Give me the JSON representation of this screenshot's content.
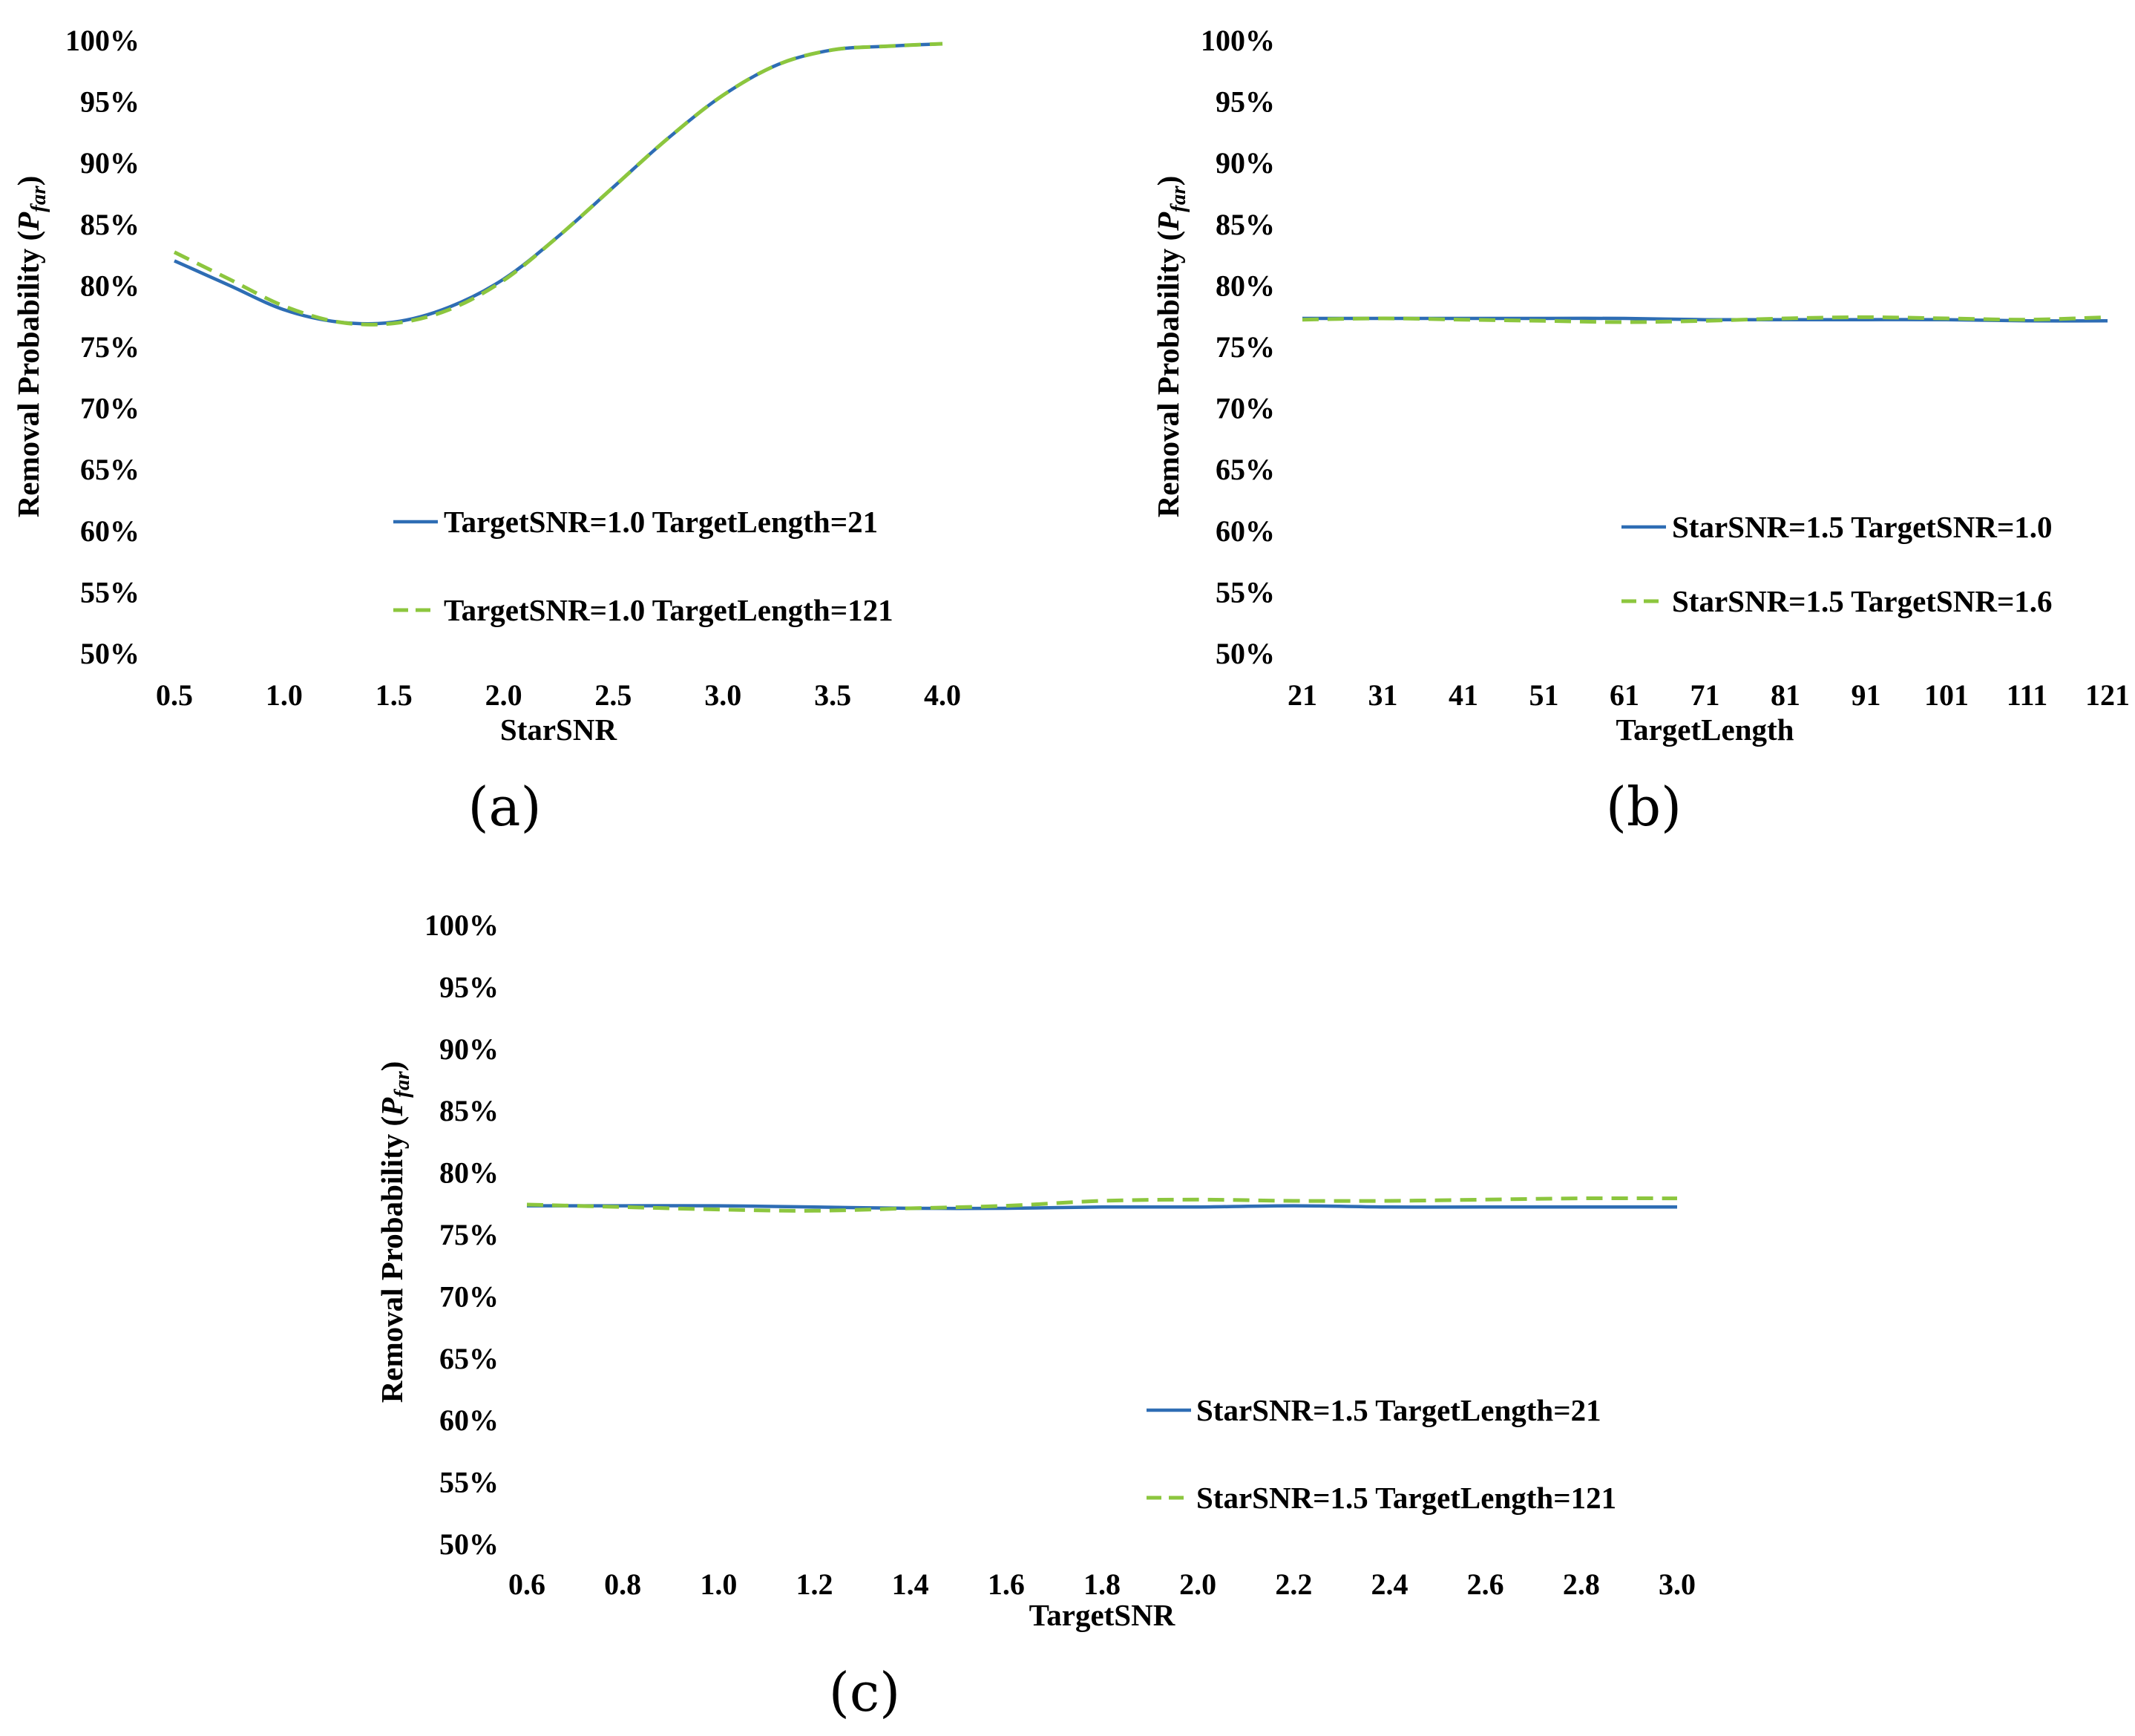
{
  "colors": {
    "series_solid": "#2e6db4",
    "series_dashed": "#8cc63e"
  },
  "chart_data": [
    {
      "id": "a",
      "type": "line",
      "caption": "(a)",
      "xlabel": "StarSNR",
      "ylabel_prefix": "Removal Probability (",
      "ylabel_symbol": "P",
      "ylabel_subscript": "far",
      "ylabel_suffix": ")",
      "xlim": [
        0.5,
        4.0
      ],
      "ylim": [
        50,
        100
      ],
      "x_ticks": [
        "0.5",
        "1.0",
        "1.5",
        "2.0",
        "2.5",
        "3.0",
        "3.5",
        "4.0"
      ],
      "y_ticks": [
        "50%",
        "55%",
        "60%",
        "65%",
        "70%",
        "75%",
        "80%",
        "85%",
        "90%",
        "95%",
        "100%"
      ],
      "legend_position": "lower-right",
      "series": [
        {
          "name": "TargetSNR=1.0 TargetLength=21",
          "style": "solid",
          "x": [
            0.5,
            0.75,
            1.0,
            1.25,
            1.5,
            1.75,
            2.0,
            2.25,
            2.5,
            2.75,
            3.0,
            3.25,
            3.5,
            3.75,
            4.0
          ],
          "y": [
            82.0,
            80.0,
            78.0,
            77.0,
            77.0,
            78.2,
            80.5,
            84.0,
            88.0,
            92.0,
            95.5,
            98.0,
            99.2,
            99.5,
            99.7
          ]
        },
        {
          "name": "TargetSNR=1.0 TargetLength=121",
          "style": "dashed",
          "x": [
            0.5,
            0.75,
            1.0,
            1.25,
            1.5,
            1.75,
            2.0,
            2.25,
            2.5,
            2.75,
            3.0,
            3.25,
            3.5,
            3.75,
            4.0
          ],
          "y": [
            82.7,
            80.5,
            78.3,
            77.0,
            76.9,
            78.0,
            80.4,
            84.0,
            88.0,
            92.0,
            95.5,
            98.0,
            99.2,
            99.5,
            99.7
          ]
        }
      ]
    },
    {
      "id": "b",
      "type": "line",
      "caption": "(b)",
      "xlabel": "TargetLength",
      "ylabel_prefix": "Removal Probability (",
      "ylabel_symbol": "P",
      "ylabel_subscript": "far",
      "ylabel_suffix": ")",
      "xlim": [
        21,
        121
      ],
      "ylim": [
        50,
        100
      ],
      "x_ticks": [
        "21",
        "31",
        "41",
        "51",
        "61",
        "71",
        "81",
        "91",
        "101",
        "111",
        "121"
      ],
      "y_ticks": [
        "50%",
        "55%",
        "60%",
        "65%",
        "70%",
        "75%",
        "80%",
        "85%",
        "90%",
        "95%",
        "100%"
      ],
      "legend_position": "lower-right",
      "series": [
        {
          "name": "StarSNR=1.5 TargetSNR=1.0",
          "style": "solid",
          "x": [
            21,
            31,
            41,
            51,
            61,
            71,
            81,
            91,
            101,
            111,
            121
          ],
          "y": [
            77.3,
            77.3,
            77.3,
            77.3,
            77.3,
            77.2,
            77.2,
            77.2,
            77.2,
            77.1,
            77.1
          ]
        },
        {
          "name": "StarSNR=1.5 TargetSNR=1.6",
          "style": "dashed",
          "x": [
            21,
            31,
            41,
            51,
            61,
            71,
            81,
            91,
            101,
            111,
            121
          ],
          "y": [
            77.2,
            77.3,
            77.2,
            77.1,
            77.0,
            77.1,
            77.3,
            77.4,
            77.3,
            77.2,
            77.4
          ]
        }
      ]
    },
    {
      "id": "c",
      "type": "line",
      "caption": "(c)",
      "xlabel": "TargetSNR",
      "ylabel_prefix": "Removal Probability (",
      "ylabel_symbol": "P",
      "ylabel_subscript": "far",
      "ylabel_suffix": ")",
      "xlim": [
        0.6,
        3.0
      ],
      "ylim": [
        50,
        100
      ],
      "x_ticks": [
        "0.6",
        "0.8",
        "1.0",
        "1.2",
        "1.4",
        "1.6",
        "1.8",
        "2.0",
        "2.2",
        "2.4",
        "2.6",
        "2.8",
        "3.0"
      ],
      "y_ticks": [
        "50%",
        "55%",
        "60%",
        "65%",
        "70%",
        "75%",
        "80%",
        "85%",
        "90%",
        "95%",
        "100%"
      ],
      "legend_position": "lower-right",
      "series": [
        {
          "name": "StarSNR=1.5 TargetLength=21",
          "style": "solid",
          "x": [
            0.6,
            0.8,
            1.0,
            1.2,
            1.4,
            1.6,
            1.8,
            2.0,
            2.2,
            2.4,
            2.6,
            2.8,
            3.0
          ],
          "y": [
            77.3,
            77.3,
            77.3,
            77.2,
            77.1,
            77.1,
            77.2,
            77.2,
            77.3,
            77.2,
            77.2,
            77.2,
            77.2
          ]
        },
        {
          "name": "StarSNR=1.5 TargetLength=121",
          "style": "dashed",
          "x": [
            0.6,
            0.8,
            1.0,
            1.2,
            1.4,
            1.6,
            1.8,
            2.0,
            2.2,
            2.4,
            2.6,
            2.8,
            3.0
          ],
          "y": [
            77.4,
            77.2,
            77.0,
            76.9,
            77.1,
            77.3,
            77.7,
            77.8,
            77.7,
            77.7,
            77.8,
            77.9,
            77.9
          ]
        }
      ]
    }
  ]
}
